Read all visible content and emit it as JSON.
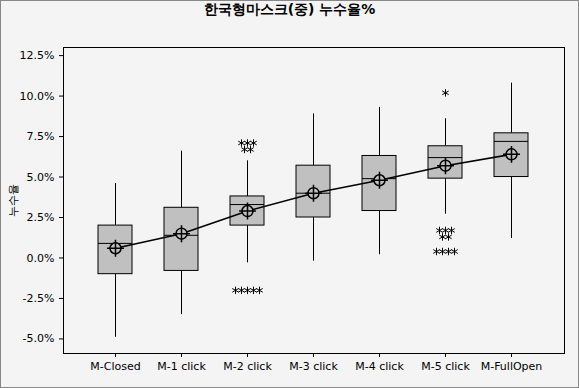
{
  "chart_data": {
    "type": "box",
    "title": "한국형마스크(중)  누수율%",
    "y_label": "누수율",
    "categories": [
      "M-Closed",
      "M-1 click",
      "M-2 click",
      "M-3 click",
      "M-4 click",
      "M-5 click",
      "M-FullOpen"
    ],
    "boxes": [
      {
        "whisker_low": -4.9,
        "q1": -1.0,
        "median": 0.9,
        "q3": 2.0,
        "whisker_high": 4.6,
        "mean": 0.6,
        "outliers": []
      },
      {
        "whisker_low": -3.5,
        "q1": -0.8,
        "median": 1.4,
        "q3": 3.1,
        "whisker_high": 6.6,
        "mean": 1.5,
        "outliers": []
      },
      {
        "whisker_low": -0.3,
        "q1": 2.0,
        "median": 3.3,
        "q3": 3.8,
        "whisker_high": 6.0,
        "mean": 2.9,
        "outliers": [
          7.1,
          7.1,
          7.1,
          6.7,
          6.7,
          -2.0,
          -2.0,
          -2.0,
          -2.0,
          -2.0
        ]
      },
      {
        "whisker_low": -0.2,
        "q1": 2.5,
        "median": 4.0,
        "q3": 5.7,
        "whisker_high": 8.9,
        "mean": 4.0,
        "outliers": []
      },
      {
        "whisker_low": 0.2,
        "q1": 2.9,
        "median": 4.9,
        "q3": 6.3,
        "whisker_high": 9.3,
        "mean": 4.8,
        "outliers": []
      },
      {
        "whisker_low": 2.7,
        "q1": 4.9,
        "median": 6.2,
        "q3": 6.9,
        "whisker_high": 8.6,
        "mean": 5.7,
        "outliers": [
          10.2,
          1.7,
          1.7,
          1.7,
          1.3,
          1.3,
          0.4,
          0.4,
          0.4,
          0.4
        ]
      },
      {
        "whisker_low": 1.2,
        "q1": 5.0,
        "median": 7.2,
        "q3": 7.7,
        "whisker_high": 10.8,
        "mean": 6.4,
        "outliers": []
      }
    ],
    "color": "#c0c0c0",
    "ylim": [
      -5.9,
      13.0
    ],
    "yticks": [
      {
        "value": -5,
        "label": "-5.0%"
      },
      {
        "value": -2.5,
        "label": "-2.5%"
      },
      {
        "value": 0,
        "label": "0.0%"
      },
      {
        "value": 2.5,
        "label": "2.5%"
      },
      {
        "value": 5,
        "label": "5.0%"
      },
      {
        "value": 7.5,
        "label": "7.5%"
      },
      {
        "value": 10,
        "label": "10.0%"
      },
      {
        "value": 12.5,
        "label": "12.5%"
      }
    ],
    "grid": false,
    "marker": "circle-plus"
  }
}
